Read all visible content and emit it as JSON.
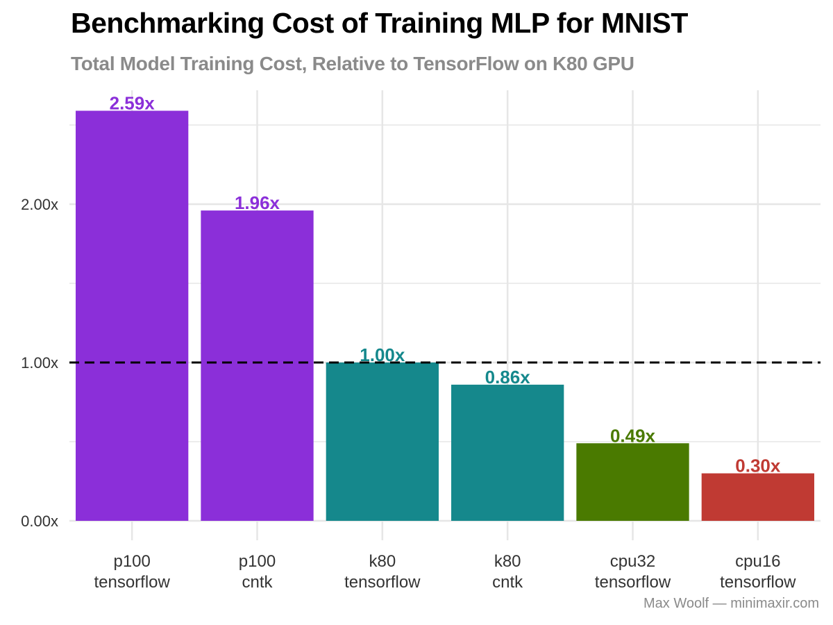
{
  "title": "Benchmarking Cost of Training MLP for MNIST",
  "subtitle": "Total Model Training Cost, Relative to TensorFlow on K80 GPU",
  "caption": "Max Woolf — minimaxir.com",
  "chart_data": {
    "type": "bar",
    "categories": [
      [
        "p100",
        "tensorflow"
      ],
      [
        "p100",
        "cntk"
      ],
      [
        "k80",
        "tensorflow"
      ],
      [
        "k80",
        "cntk"
      ],
      [
        "cpu32",
        "tensorflow"
      ],
      [
        "cpu16",
        "tensorflow"
      ]
    ],
    "values": [
      2.59,
      1.96,
      1.0,
      0.86,
      0.49,
      0.3
    ],
    "data_labels": [
      "2.59x",
      "1.96x",
      "1.00x",
      "0.86x",
      "0.49x",
      "0.30x"
    ],
    "colors": [
      "#8b2fd9",
      "#8b2fd9",
      "#15888c",
      "#15888c",
      "#4a7a00",
      "#c03a33"
    ],
    "yticks": [
      0,
      1,
      2
    ],
    "ytick_labels": [
      "0.00x",
      "1.00x",
      "2.00x"
    ],
    "ylim": [
      0,
      2.72
    ],
    "reference_line": 1.0,
    "grid": true
  }
}
